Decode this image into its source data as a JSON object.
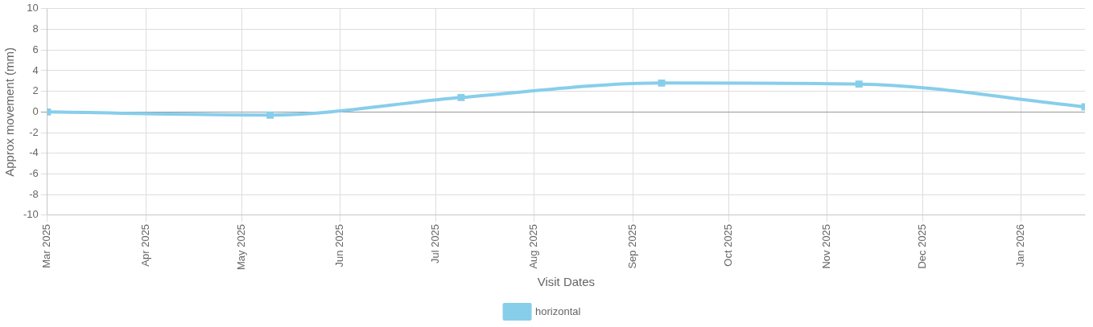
{
  "chart_data": {
    "type": "line",
    "xlabel": "Visit Dates",
    "ylabel": "Approx movement (mm)",
    "x": [
      "2025-03-01",
      "2025-05-10",
      "2025-07-09",
      "2025-09-10",
      "2025-11-11",
      "2026-01-21"
    ],
    "series": [
      {
        "name": "horizontal",
        "color": "#87ceeb",
        "values": [
          0,
          -0.3,
          1.4,
          2.8,
          2.7,
          0.5
        ]
      }
    ],
    "xlim": [
      "2025-03-01",
      "2026-01-21"
    ],
    "xticks": [
      {
        "value": "2025-03-01",
        "label": "Mar 2025"
      },
      {
        "value": "2025-04-01",
        "label": "Apr 2025"
      },
      {
        "value": "2025-05-01",
        "label": "May 2025"
      },
      {
        "value": "2025-06-01",
        "label": "Jun 2025"
      },
      {
        "value": "2025-07-01",
        "label": "Jul 2025"
      },
      {
        "value": "2025-08-01",
        "label": "Aug 2025"
      },
      {
        "value": "2025-09-01",
        "label": "Sep 2025"
      },
      {
        "value": "2025-10-01",
        "label": "Oct 2025"
      },
      {
        "value": "2025-11-01",
        "label": "Nov 2025"
      },
      {
        "value": "2025-12-01",
        "label": "Dec 2025"
      },
      {
        "value": "2026-01-01",
        "label": "Jan 2026"
      }
    ],
    "ylim": [
      -10,
      10
    ],
    "yticks": [
      -10,
      -8,
      -6,
      -4,
      -2,
      0,
      2,
      4,
      6,
      8,
      10
    ],
    "grid": true,
    "legend": "bottom",
    "marker": "square",
    "line_style": "solid"
  }
}
